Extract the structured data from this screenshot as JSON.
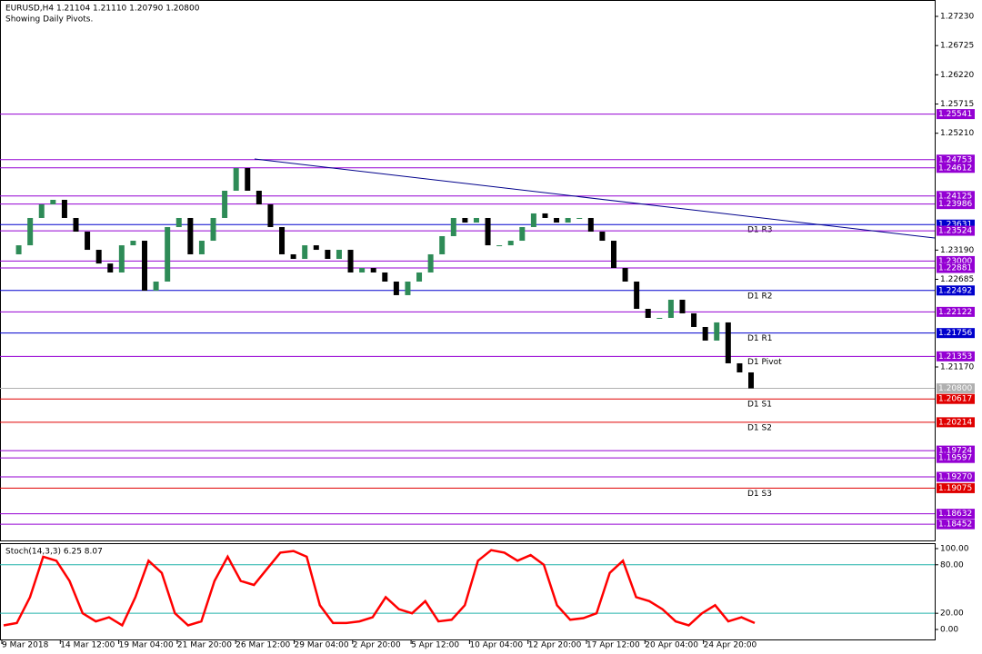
{
  "chart_data": {
    "type": "candlestick",
    "header": "EURUSD,H4  1.21104 1.21110 1.20790 1.20800",
    "subtitle": "Showing Daily Pivots.",
    "ylim": [
      1.18171,
      1.27513
    ],
    "yticks": [
      {
        "value": 1.2723,
        "label": "1.27230"
      },
      1.26725,
      {
        "value": 1.2622,
        "label": "1.26220"
      },
      1.25715,
      {
        "value": 1.2521,
        "label": "1.25210"
      },
      {
        "value": 1.2319,
        "label": "1.23190"
      },
      1.22685,
      {
        "value": 1.2117,
        "label": "1.21170"
      }
    ],
    "up_color": "#2e8b57",
    "down_color": "#000000",
    "closes": [
      1.23117,
      1.23273,
      1.23745,
      1.2398,
      1.24059,
      1.23745,
      1.23509,
      1.23195,
      1.22958,
      1.22803,
      1.23273,
      1.23352,
      1.22489,
      1.22646,
      1.23588,
      1.23745,
      1.23117,
      1.23352,
      1.23745,
      1.24216,
      1.24608,
      1.24216,
      1.2398,
      1.23588,
      1.23117,
      1.23038,
      1.23273,
      1.23195,
      1.23038,
      1.23195,
      1.22803,
      1.22881,
      1.22803,
      1.22646,
      1.22411,
      1.22646,
      1.22803,
      1.23117,
      1.23431,
      1.23745,
      1.23666,
      1.23745,
      1.23273,
      1.23273,
      1.23352,
      1.23588,
      1.23824,
      1.23745,
      1.23666,
      1.23745,
      1.23745,
      1.23509,
      1.23352,
      1.22881,
      1.22646,
      1.22175,
      1.22018,
      1.22018,
      1.22332,
      1.22097,
      1.21861,
      1.21626,
      1.2194,
      1.21233,
      1.21076,
      1.208
    ],
    "trendline": {
      "start_price": 1.24765,
      "end_price": 1.23399,
      "color": "#00008b"
    },
    "levels": [
      {
        "price": 1.25541,
        "color": "#9400d3"
      },
      {
        "price": 1.24753,
        "color": "#9400d3"
      },
      {
        "price": 1.24612,
        "color": "#9400d3"
      },
      {
        "price": 1.24125,
        "color": "#9400d3"
      },
      {
        "price": 1.23986,
        "color": "#9400d3"
      },
      {
        "price": 1.23631,
        "color": "#0000cd",
        "name": "D1 R3"
      },
      {
        "price": 1.23524,
        "color": "#9400d3"
      },
      {
        "price": 1.23,
        "price_label": "1.23000",
        "color": "#9400d3"
      },
      {
        "price": 1.22881,
        "color": "#9400d3"
      },
      {
        "price": 1.22492,
        "color": "#0000cd",
        "name": "D1 R2"
      },
      {
        "price": 1.22122,
        "color": "#9400d3"
      },
      {
        "price": 1.21756,
        "color": "#0000cd",
        "name": "D1 R1"
      },
      {
        "price": 1.21353,
        "color": "#9400d3",
        "name": "D1 Pivot"
      },
      {
        "price": 1.208,
        "price_label": "1.20800",
        "color": "#b0b0b0"
      },
      {
        "price": 1.20617,
        "color": "#e00000",
        "name": "D1 S1"
      },
      {
        "price": 1.20214,
        "color": "#e00000",
        "name": "D1 S2"
      },
      {
        "price": 1.19724,
        "color": "#9400d3"
      },
      {
        "price": 1.19597,
        "color": "#9400d3"
      },
      {
        "price": 1.1927,
        "price_label": "1.19270",
        "color": "#9400d3"
      },
      {
        "price": 1.19075,
        "color": "#e00000",
        "name": "D1 S3"
      },
      {
        "price": 1.18632,
        "color": "#9400d3"
      },
      {
        "price": 1.18452,
        "color": "#9400d3"
      }
    ],
    "time_labels": [
      "9 Mar 2018",
      "14 Mar 12:00",
      "19 Mar 04:00",
      "21 Mar 20:00",
      "26 Mar 12:00",
      "29 Mar 04:00",
      "2 Apr 20:00",
      "5 Apr 12:00",
      "10 Apr 04:00",
      "12 Apr 20:00",
      "17 Apr 12:00",
      "20 Apr 04:00",
      "24 Apr 20:00"
    ],
    "stoch": {
      "label": "Stoch(14,3,3) 6.25 8.07",
      "color": "#ff0000",
      "level_color": "#20b2aa",
      "ylim": [
        -13.5,
        106.7
      ],
      "yticks": [
        {
          "value": 100,
          "label": "100.00"
        },
        {
          "value": 80,
          "label": "80.00"
        },
        {
          "value": 20,
          "label": "20.00"
        },
        {
          "value": 0,
          "label": "0.00"
        }
      ],
      "levels": [
        80,
        20
      ],
      "values": [
        5,
        8,
        40,
        90,
        85,
        60,
        20,
        10,
        15,
        5,
        40,
        85,
        70,
        20,
        5,
        10,
        60,
        90,
        60,
        55,
        75,
        95,
        97,
        90,
        30,
        8,
        8,
        10,
        15,
        40,
        25,
        20,
        35,
        10,
        12,
        30,
        85,
        98,
        95,
        85,
        92,
        80,
        30,
        12,
        14,
        20,
        70,
        85,
        40,
        35,
        25,
        10,
        5,
        20,
        30,
        10,
        15,
        8
      ]
    }
  }
}
